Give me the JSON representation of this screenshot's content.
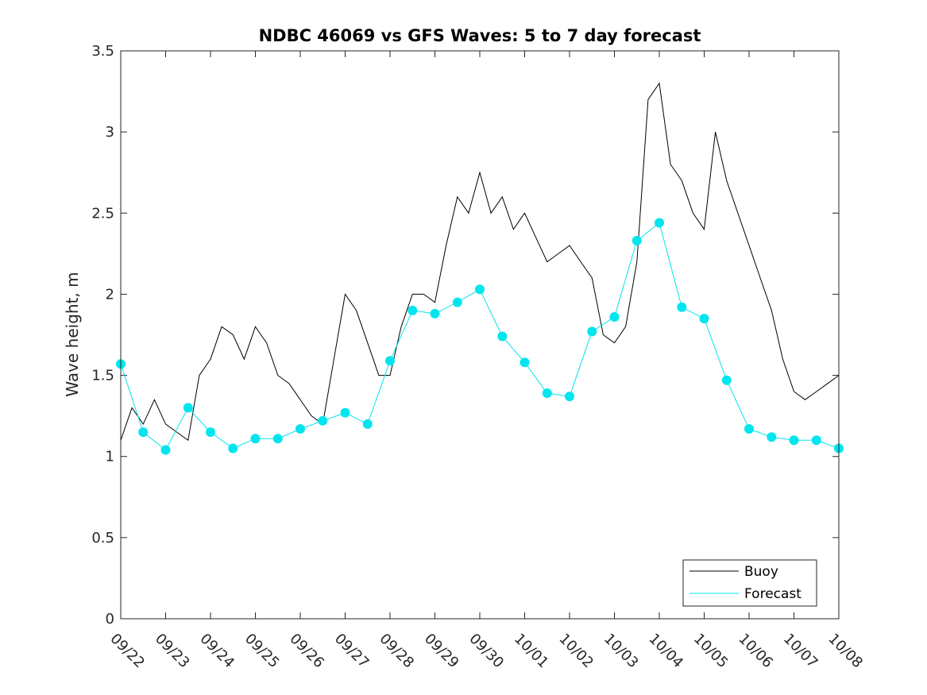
{
  "chart_data": {
    "type": "line",
    "title": "NDBC 46069 vs GFS Waves: 5 to 7 day forecast",
    "xlabel": "",
    "ylabel": "Wave height, m",
    "ylim": [
      0,
      3.5
    ],
    "yticks": [
      0,
      0.5,
      1,
      1.5,
      2,
      2.5,
      3,
      3.5
    ],
    "ytick_labels": [
      "0",
      "0.5",
      "1",
      "1.5",
      "2",
      "2.5",
      "3",
      "3.5"
    ],
    "xlim_days": [
      0,
      16
    ],
    "xtick_labels": [
      "09/22",
      "09/23",
      "09/24",
      "09/25",
      "09/26",
      "09/27",
      "09/28",
      "09/29",
      "09/30",
      "10/01",
      "10/02",
      "10/03",
      "10/04",
      "10/05",
      "10/06",
      "10/07",
      "10/08"
    ],
    "legend": {
      "position": "bottom-right",
      "entries": [
        {
          "label": "Buoy",
          "color": "#000000"
        },
        {
          "label": "Forecast",
          "color": "#00e5ee"
        }
      ]
    },
    "series": [
      {
        "name": "Buoy",
        "color": "#000000",
        "x": [
          0.0,
          0.25,
          0.5,
          0.75,
          1.0,
          1.25,
          1.5,
          1.75,
          2.0,
          2.25,
          2.5,
          2.75,
          3.0,
          3.25,
          3.5,
          3.75,
          4.0,
          4.25,
          4.5,
          4.75,
          5.0,
          5.25,
          5.5,
          5.75,
          6.0,
          6.25,
          6.5,
          6.75,
          7.0,
          7.25,
          7.5,
          7.75,
          8.0,
          8.25,
          8.5,
          8.75,
          9.0,
          9.25,
          9.5,
          9.75,
          10.0,
          10.25,
          10.5,
          10.75,
          11.0,
          11.25,
          11.5,
          11.75,
          12.0,
          12.25,
          12.5,
          12.75,
          13.0,
          13.25,
          13.5,
          13.75,
          14.0,
          14.25,
          14.5,
          14.75,
          15.0,
          15.25,
          15.5,
          15.75,
          16.0
        ],
        "values": [
          1.1,
          1.3,
          1.2,
          1.35,
          1.2,
          1.15,
          1.1,
          1.5,
          1.6,
          1.8,
          1.75,
          1.6,
          1.8,
          1.7,
          1.5,
          1.45,
          1.35,
          1.25,
          1.2,
          1.6,
          2.0,
          1.9,
          1.7,
          1.5,
          1.5,
          1.8,
          2.0,
          2.0,
          1.95,
          2.3,
          2.6,
          2.5,
          2.75,
          2.5,
          2.6,
          2.4,
          2.5,
          2.35,
          2.2,
          2.25,
          2.3,
          2.2,
          2.1,
          1.75,
          1.7,
          1.8,
          2.2,
          3.2,
          3.3,
          2.8,
          2.7,
          2.5,
          2.4,
          3.0,
          2.7,
          2.5,
          2.3,
          2.1,
          1.9,
          1.6,
          1.4,
          1.35,
          1.4,
          1.45,
          1.5
        ]
      },
      {
        "name": "Forecast",
        "color": "#00e5ee",
        "x": [
          0.0,
          0.5,
          1.0,
          1.5,
          2.0,
          2.5,
          3.0,
          3.5,
          4.0,
          4.5,
          5.0,
          5.5,
          6.0,
          6.5,
          7.0,
          7.5,
          8.0,
          8.5,
          9.0,
          9.5,
          10.0,
          10.5,
          11.0,
          11.5,
          12.0,
          12.5,
          13.0,
          13.5,
          14.0,
          14.5,
          15.0,
          15.5,
          16.0
        ],
        "values": [
          1.57,
          1.15,
          1.04,
          1.3,
          1.15,
          1.05,
          1.11,
          1.11,
          1.17,
          1.22,
          1.27,
          1.2,
          1.59,
          1.9,
          1.88,
          1.95,
          2.03,
          1.74,
          1.58,
          1.39,
          1.37,
          1.77,
          1.86,
          2.33,
          2.44,
          1.92,
          1.85,
          1.47,
          1.17,
          1.12,
          1.1,
          1.1,
          1.05
        ]
      }
    ]
  }
}
